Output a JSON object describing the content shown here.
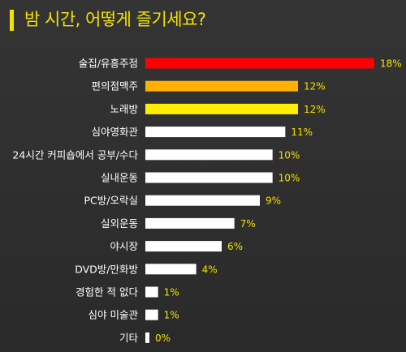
{
  "title": "밤 시간, 어떻게 즐기세요?",
  "colors": {
    "background": "#2d2d2d",
    "accent": "#f2e200",
    "top1": "#ff0000",
    "top2": "#ffb000",
    "top3": "#ffee00",
    "default_bar": "#ffffff",
    "label": "#ffffff",
    "value_label": "#f2e200"
  },
  "chart_data": {
    "type": "bar",
    "orientation": "horizontal",
    "title": "밤 시간, 어떻게 즐기세요?",
    "categories": [
      "술집/유흥주점",
      "편의점맥주",
      "노래방",
      "심야영화관",
      "24시간 커피숍에서 공부/수다",
      "실내운동",
      "PC방/오락실",
      "실외운동",
      "야시장",
      "DVD방/만화방",
      "경험한 적 없다",
      "심야 미술관",
      "기타"
    ],
    "values": [
      18,
      12,
      12,
      11,
      10,
      10,
      9,
      7,
      6,
      4,
      1,
      1,
      0
    ],
    "value_labels": [
      "18%",
      "12%",
      "12%",
      "11%",
      "10%",
      "10%",
      "9%",
      "7%",
      "6%",
      "4%",
      "1%",
      "1%",
      "0%"
    ],
    "unit": "%",
    "xlim": [
      0,
      18
    ],
    "grid": false,
    "legend": "none"
  }
}
